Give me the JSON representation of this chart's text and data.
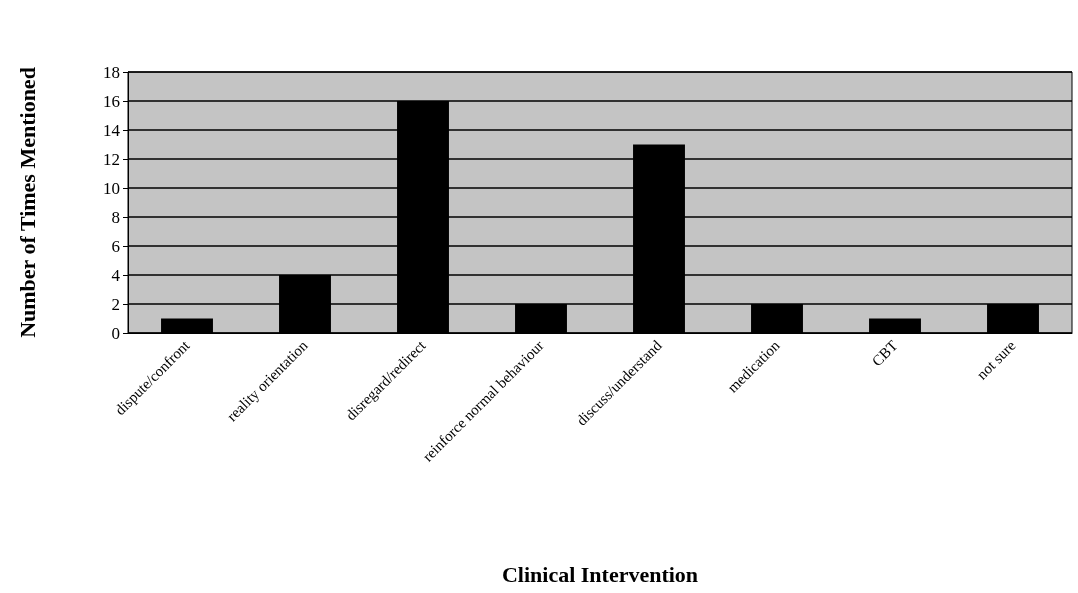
{
  "chart_data": {
    "type": "bar",
    "xlabel": "Clinical Intervention",
    "ylabel": "Number of Times Mentioned",
    "categories": [
      "dispute/confront",
      "reality orientation",
      "disregard/redirect",
      "reinforce normal behaviour",
      "discuss/understand",
      "medication",
      "CBT",
      "not sure"
    ],
    "values": [
      1,
      4,
      16,
      2,
      13,
      2,
      1,
      2
    ],
    "color": "#000000",
    "ylim": [
      0,
      18
    ],
    "yticks": [
      0,
      2,
      4,
      6,
      8,
      10,
      12,
      14,
      16,
      18
    ],
    "grid": "y"
  }
}
